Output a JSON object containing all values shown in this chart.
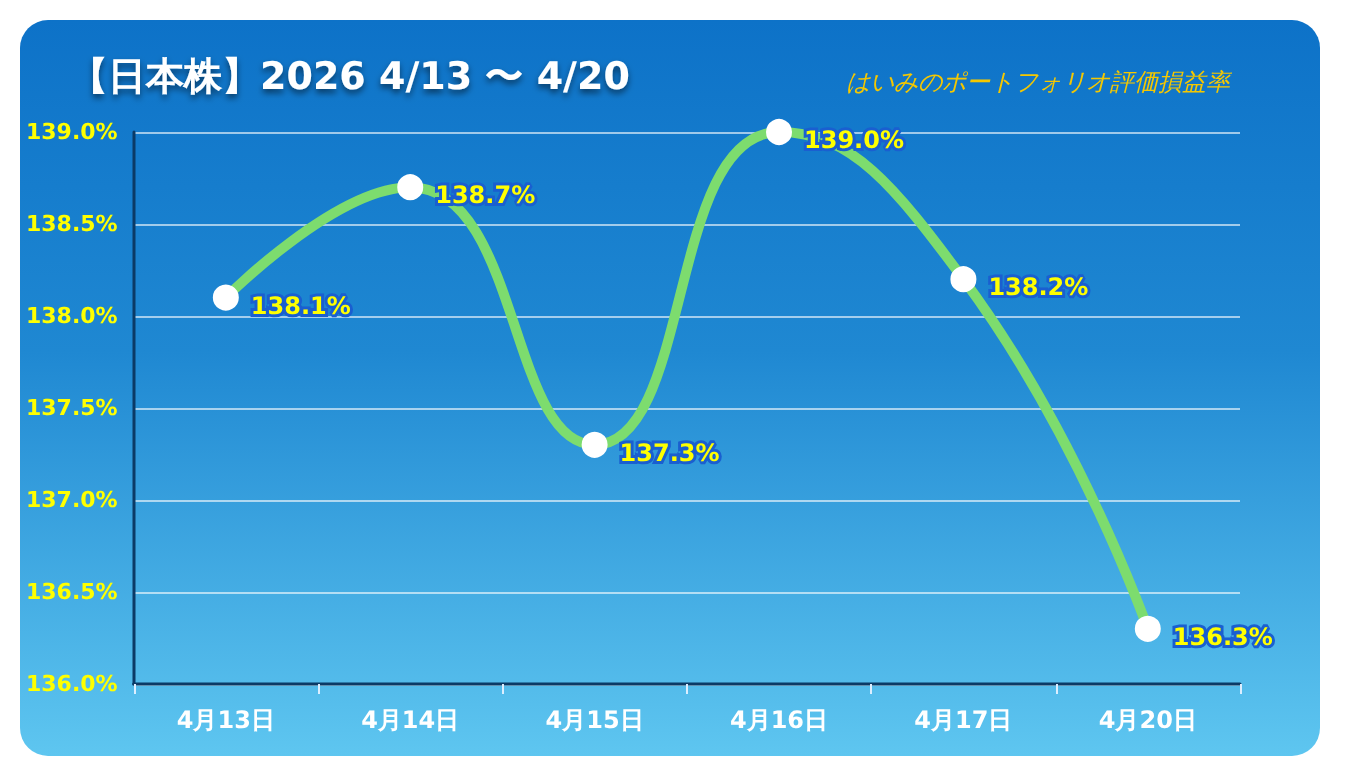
{
  "chart_data": {
    "type": "line",
    "title": "【日本株】2026 4/13 〜 4/20",
    "subtitle": "はいみのポートフォリオ評価損益率",
    "categories": [
      "4月13日",
      "4月14日",
      "4月15日",
      "4月16日",
      "4月17日",
      "4月20日"
    ],
    "series": [
      {
        "color": "#7ddc6e",
        "values": [
          138.1,
          138.7,
          137.3,
          139.0,
          138.2,
          136.3
        ],
        "value_labels": [
          "138.1%",
          "138.7%",
          "137.3%",
          "139.0%",
          "138.2%",
          "136.3%"
        ]
      }
    ],
    "ylim": [
      136.0,
      139.0
    ],
    "yticks": [
      {
        "value": 136.0,
        "label": "136.0%"
      },
      {
        "value": 136.5,
        "label": "136.5%"
      },
      {
        "value": 137.0,
        "label": "137.0%"
      },
      {
        "value": 137.5,
        "label": "137.5%"
      },
      {
        "value": 138.0,
        "label": "138.0%"
      },
      {
        "value": 138.5,
        "label": "138.5%"
      },
      {
        "value": 139.0,
        "label": "139.0%"
      }
    ],
    "grid": "y",
    "marker": "circle"
  }
}
